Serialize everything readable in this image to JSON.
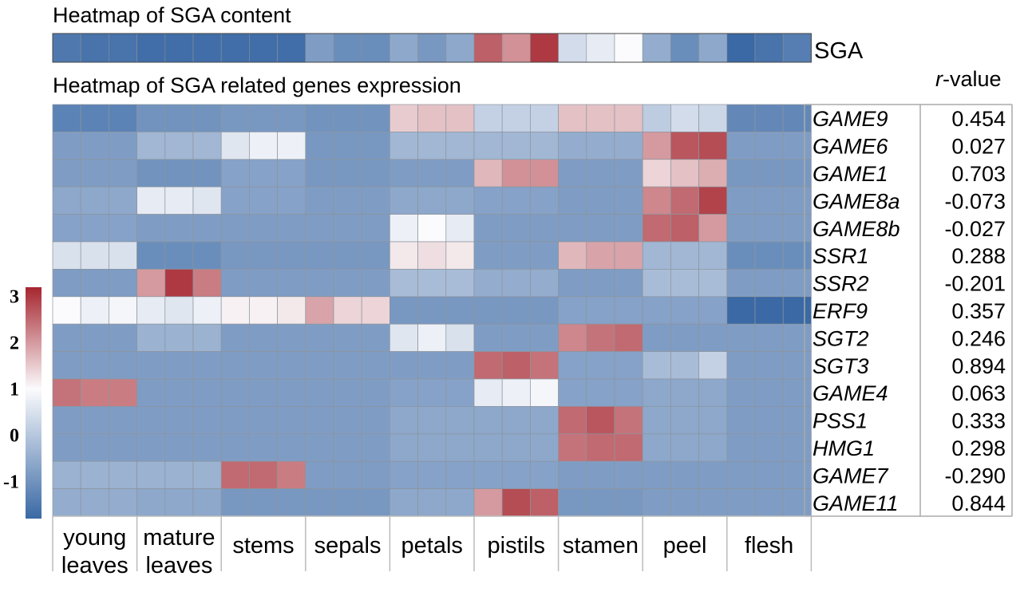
{
  "chart_data": {
    "type": "heatmap",
    "titles": {
      "top": "Heatmap of SGA content",
      "main": "Heatmap of SGA related genes expression",
      "rvalue_header": [
        "r",
        "-value"
      ]
    },
    "tissues": [
      {
        "lines": [
          "young",
          "leaves"
        ]
      },
      {
        "lines": [
          "mature",
          "leaves"
        ]
      },
      {
        "lines": [
          "stems"
        ]
      },
      {
        "lines": [
          "sepals"
        ]
      },
      {
        "lines": [
          "petals"
        ]
      },
      {
        "lines": [
          "pistils"
        ]
      },
      {
        "lines": [
          "stamen"
        ]
      },
      {
        "lines": [
          "peel"
        ]
      },
      {
        "lines": [
          "flesh"
        ]
      }
    ],
    "sga_row": {
      "label": "SGA",
      "values": [
        -1.5,
        -1.6,
        -1.6,
        -1.7,
        -1.7,
        -1.7,
        -1.7,
        -1.7,
        -1.7,
        -0.8,
        -1.1,
        -1.1,
        -0.6,
        -0.9,
        -0.6,
        2.6,
        2.1,
        3.0,
        0.4,
        0.7,
        1.0,
        -0.5,
        -1.1,
        -0.6,
        -1.8,
        -1.6,
        -1.4
      ]
    },
    "genes": [
      {
        "name": "GAME9",
        "r": "0.454",
        "values": [
          -1.3,
          -1.3,
          -1.3,
          -1.0,
          -1.0,
          -1.0,
          -0.9,
          -0.9,
          -0.9,
          -1.0,
          -1.0,
          -1.0,
          1.5,
          1.6,
          1.6,
          0.2,
          0.2,
          0.2,
          1.6,
          1.6,
          1.6,
          0.1,
          0.4,
          0.3,
          -1.2,
          -1.2,
          -1.2
        ]
      },
      {
        "name": "GAME6",
        "r": "0.027",
        "values": [
          -0.8,
          -0.8,
          -0.8,
          -0.3,
          -0.3,
          -0.3,
          0.6,
          0.8,
          0.8,
          -0.9,
          -0.9,
          -0.9,
          -0.3,
          -0.3,
          -0.3,
          -0.3,
          -0.3,
          -0.3,
          -0.5,
          -0.5,
          -0.5,
          2.0,
          2.7,
          2.8,
          -0.8,
          -0.8,
          -0.8
        ]
      },
      {
        "name": "GAME1",
        "r": "0.703",
        "values": [
          -0.8,
          -0.8,
          -0.8,
          -1.0,
          -1.0,
          -1.0,
          -0.7,
          -0.7,
          -0.7,
          -0.9,
          -0.9,
          -0.9,
          -0.8,
          -0.8,
          -0.8,
          1.7,
          2.1,
          2.1,
          -0.8,
          -0.8,
          -0.8,
          1.4,
          1.6,
          1.8,
          -0.9,
          -0.9,
          -0.9
        ]
      },
      {
        "name": "GAME8a",
        "r": "-0.073",
        "values": [
          -0.6,
          -0.6,
          -0.6,
          0.7,
          0.7,
          0.6,
          -0.7,
          -0.7,
          -0.7,
          -0.8,
          -0.8,
          -0.8,
          -0.6,
          -0.6,
          -0.6,
          -0.7,
          -0.7,
          -0.7,
          -0.8,
          -0.8,
          -0.8,
          2.2,
          2.5,
          2.9,
          -0.8,
          -0.8,
          -0.8
        ]
      },
      {
        "name": "GAME8b",
        "r": "-0.027",
        "values": [
          -0.7,
          -0.7,
          -0.7,
          -0.8,
          -0.8,
          -0.8,
          -0.8,
          -0.8,
          -0.8,
          -0.8,
          -0.8,
          -0.8,
          0.8,
          1.0,
          0.7,
          -0.8,
          -0.8,
          -0.8,
          -0.8,
          -0.8,
          -0.8,
          2.5,
          2.6,
          2.0,
          -0.8,
          -0.8,
          -0.8
        ]
      },
      {
        "name": "SSR1",
        "r": "0.288",
        "values": [
          0.5,
          0.5,
          0.5,
          -1.1,
          -1.1,
          -1.1,
          -0.9,
          -0.9,
          -0.9,
          -0.9,
          -0.9,
          -0.9,
          1.2,
          1.3,
          1.2,
          -0.8,
          -0.8,
          -0.8,
          1.7,
          1.9,
          1.9,
          -0.3,
          -0.3,
          -0.3,
          -1.1,
          -1.1,
          -1.1
        ]
      },
      {
        "name": "SSR2",
        "r": "-0.201",
        "values": [
          -0.8,
          -0.8,
          -0.8,
          2.0,
          3.0,
          2.3,
          -0.8,
          -0.8,
          -0.8,
          -0.8,
          -0.8,
          -0.8,
          -0.2,
          -0.2,
          -0.2,
          -0.5,
          -0.5,
          -0.5,
          -0.8,
          -0.8,
          -0.8,
          -0.2,
          -0.2,
          -0.2,
          -0.8,
          -0.8,
          -0.8
        ]
      },
      {
        "name": "ERF9",
        "r": "0.357",
        "values": [
          1.0,
          0.8,
          0.9,
          0.7,
          0.6,
          0.8,
          1.1,
          1.1,
          1.2,
          1.9,
          1.4,
          1.4,
          -0.9,
          -0.9,
          -0.9,
          -0.9,
          -0.9,
          -0.9,
          -0.7,
          -0.7,
          -0.7,
          -0.7,
          -0.7,
          -0.7,
          -1.8,
          -1.8,
          -1.8
        ]
      },
      {
        "name": "SGT2",
        "r": "0.246",
        "values": [
          -0.8,
          -0.8,
          -0.8,
          -0.4,
          -0.4,
          -0.4,
          -0.8,
          -0.8,
          -0.8,
          -0.8,
          -0.8,
          -0.8,
          0.6,
          0.8,
          0.5,
          -0.8,
          -0.8,
          -0.8,
          2.2,
          2.4,
          2.5,
          -0.8,
          -0.8,
          -0.8,
          -0.8,
          -0.8,
          -0.8
        ]
      },
      {
        "name": "SGT3",
        "r": "0.894",
        "values": [
          -0.8,
          -0.8,
          -0.8,
          -0.8,
          -0.8,
          -0.8,
          -0.8,
          -0.8,
          -0.8,
          -0.8,
          -0.8,
          -0.8,
          -0.8,
          -0.8,
          -0.8,
          2.5,
          2.6,
          2.4,
          -0.7,
          -0.7,
          -0.7,
          -0.2,
          -0.2,
          0.2,
          -0.8,
          -0.8,
          -0.8
        ]
      },
      {
        "name": "GAME4",
        "r": "0.063",
        "values": [
          2.4,
          2.3,
          2.3,
          -0.8,
          -0.8,
          -0.8,
          -0.8,
          -0.8,
          -0.8,
          -0.8,
          -0.8,
          -0.8,
          -0.7,
          -0.7,
          -0.7,
          0.7,
          0.8,
          0.9,
          -0.7,
          -0.7,
          -0.7,
          -0.6,
          -0.6,
          -0.6,
          -0.8,
          -0.8,
          -0.8
        ]
      },
      {
        "name": "PSS1",
        "r": "0.333",
        "values": [
          -0.8,
          -0.8,
          -0.8,
          -0.8,
          -0.8,
          -0.8,
          -0.8,
          -0.8,
          -0.8,
          -0.8,
          -0.8,
          -0.8,
          -0.6,
          -0.6,
          -0.6,
          -0.6,
          -0.6,
          -0.6,
          2.5,
          2.7,
          2.4,
          -0.6,
          -0.6,
          -0.6,
          -0.8,
          -0.8,
          -0.8
        ]
      },
      {
        "name": "HMG1",
        "r": "0.298",
        "values": [
          -0.8,
          -0.8,
          -0.8,
          -0.8,
          -0.8,
          -0.8,
          -0.8,
          -0.8,
          -0.8,
          -0.8,
          -0.8,
          -0.8,
          -0.6,
          -0.6,
          -0.6,
          -0.6,
          -0.6,
          -0.6,
          2.4,
          2.5,
          2.5,
          -0.6,
          -0.6,
          -0.6,
          -0.8,
          -0.8,
          -0.8
        ]
      },
      {
        "name": "GAME7",
        "r": "-0.290",
        "values": [
          -0.4,
          -0.4,
          -0.4,
          -0.4,
          -0.4,
          -0.4,
          2.5,
          2.5,
          2.3,
          -0.8,
          -0.8,
          -0.8,
          -0.7,
          -0.7,
          -0.7,
          -0.7,
          -0.7,
          -0.7,
          -0.8,
          -0.8,
          -0.8,
          -0.8,
          -0.8,
          -0.8,
          -0.8,
          -0.8,
          -0.8
        ]
      },
      {
        "name": "GAME11",
        "r": "0.844",
        "values": [
          -0.5,
          -0.5,
          -0.5,
          -0.6,
          -0.6,
          -0.6,
          -0.9,
          -0.9,
          -0.9,
          -0.9,
          -0.9,
          -0.9,
          -0.6,
          -0.6,
          -0.6,
          2.0,
          2.8,
          2.6,
          -0.9,
          -0.9,
          -0.9,
          -0.8,
          -0.8,
          -0.8,
          -0.8,
          -0.8,
          -0.8
        ]
      }
    ],
    "color_scale": {
      "ticks": [
        "3",
        "2",
        "1",
        "0",
        "-1"
      ],
      "min": -1.8,
      "max": 3.2,
      "stops": [
        {
          "v": -1.8,
          "color": "#3a69a5"
        },
        {
          "v": 1.0,
          "color": "#fbfbfd"
        },
        {
          "v": 3.2,
          "color": "#a6262f"
        }
      ]
    }
  }
}
